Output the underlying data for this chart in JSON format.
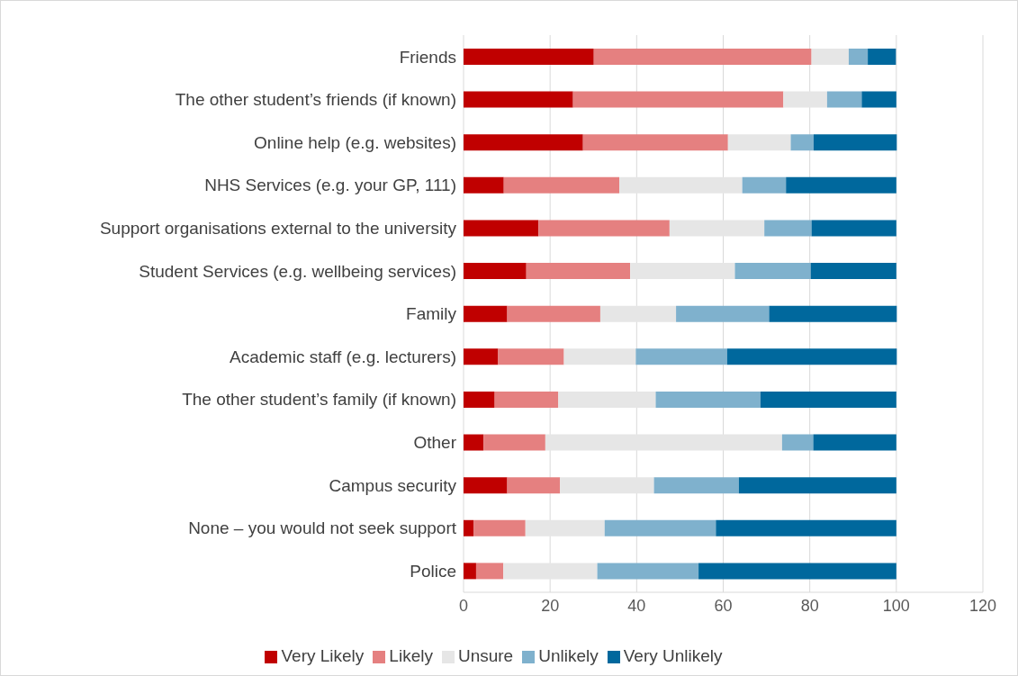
{
  "chart_data": {
    "type": "bar",
    "orientation": "horizontal",
    "stacked": true,
    "categories": [
      "Friends",
      "The other student’s friends (if known)",
      "Online help (e.g. websites)",
      "NHS Services (e.g. your GP, 111)",
      "Support organisations external to the university",
      "Student Services (e.g. wellbeing services)",
      "Family",
      "Academic staff (e.g. lecturers)",
      "The other student’s family (if known)",
      "Other",
      "Campus security",
      "None – you would not seek support",
      "Police"
    ],
    "series": [
      {
        "name": "Very Likely",
        "color": "#c00000",
        "values": [
          30.1,
          25.3,
          27.6,
          9.3,
          17.3,
          14.5,
          10.1,
          8.0,
          7.2,
          4.6,
          10.1,
          2.3,
          2.9
        ]
      },
      {
        "name": "Likely",
        "color": "#e58080",
        "values": [
          50.3,
          48.6,
          33.5,
          26.7,
          30.3,
          24.0,
          21.5,
          15.2,
          14.7,
          14.3,
          12.2,
          12.0,
          6.3
        ]
      },
      {
        "name": "Unsure",
        "color": "#e6e6e6",
        "values": [
          8.6,
          10.1,
          14.5,
          28.4,
          21.9,
          24.2,
          17.5,
          16.6,
          22.5,
          54.7,
          21.7,
          18.3,
          21.7
        ]
      },
      {
        "name": "Unlikely",
        "color": "#7fb1cd",
        "values": [
          4.4,
          8.0,
          5.3,
          10.1,
          10.9,
          17.5,
          21.5,
          21.1,
          24.2,
          7.2,
          19.6,
          25.7,
          23.4
        ]
      },
      {
        "name": "Very Unlikely",
        "color": "#00689d",
        "values": [
          6.5,
          8.0,
          19.2,
          25.5,
          19.6,
          19.8,
          29.5,
          39.2,
          31.4,
          19.2,
          36.4,
          41.7,
          45.7
        ]
      }
    ],
    "xlim": [
      0,
      120
    ],
    "xticks": [
      0,
      20,
      40,
      60,
      80,
      100,
      120
    ],
    "grid": "x",
    "legend": "bottom"
  }
}
